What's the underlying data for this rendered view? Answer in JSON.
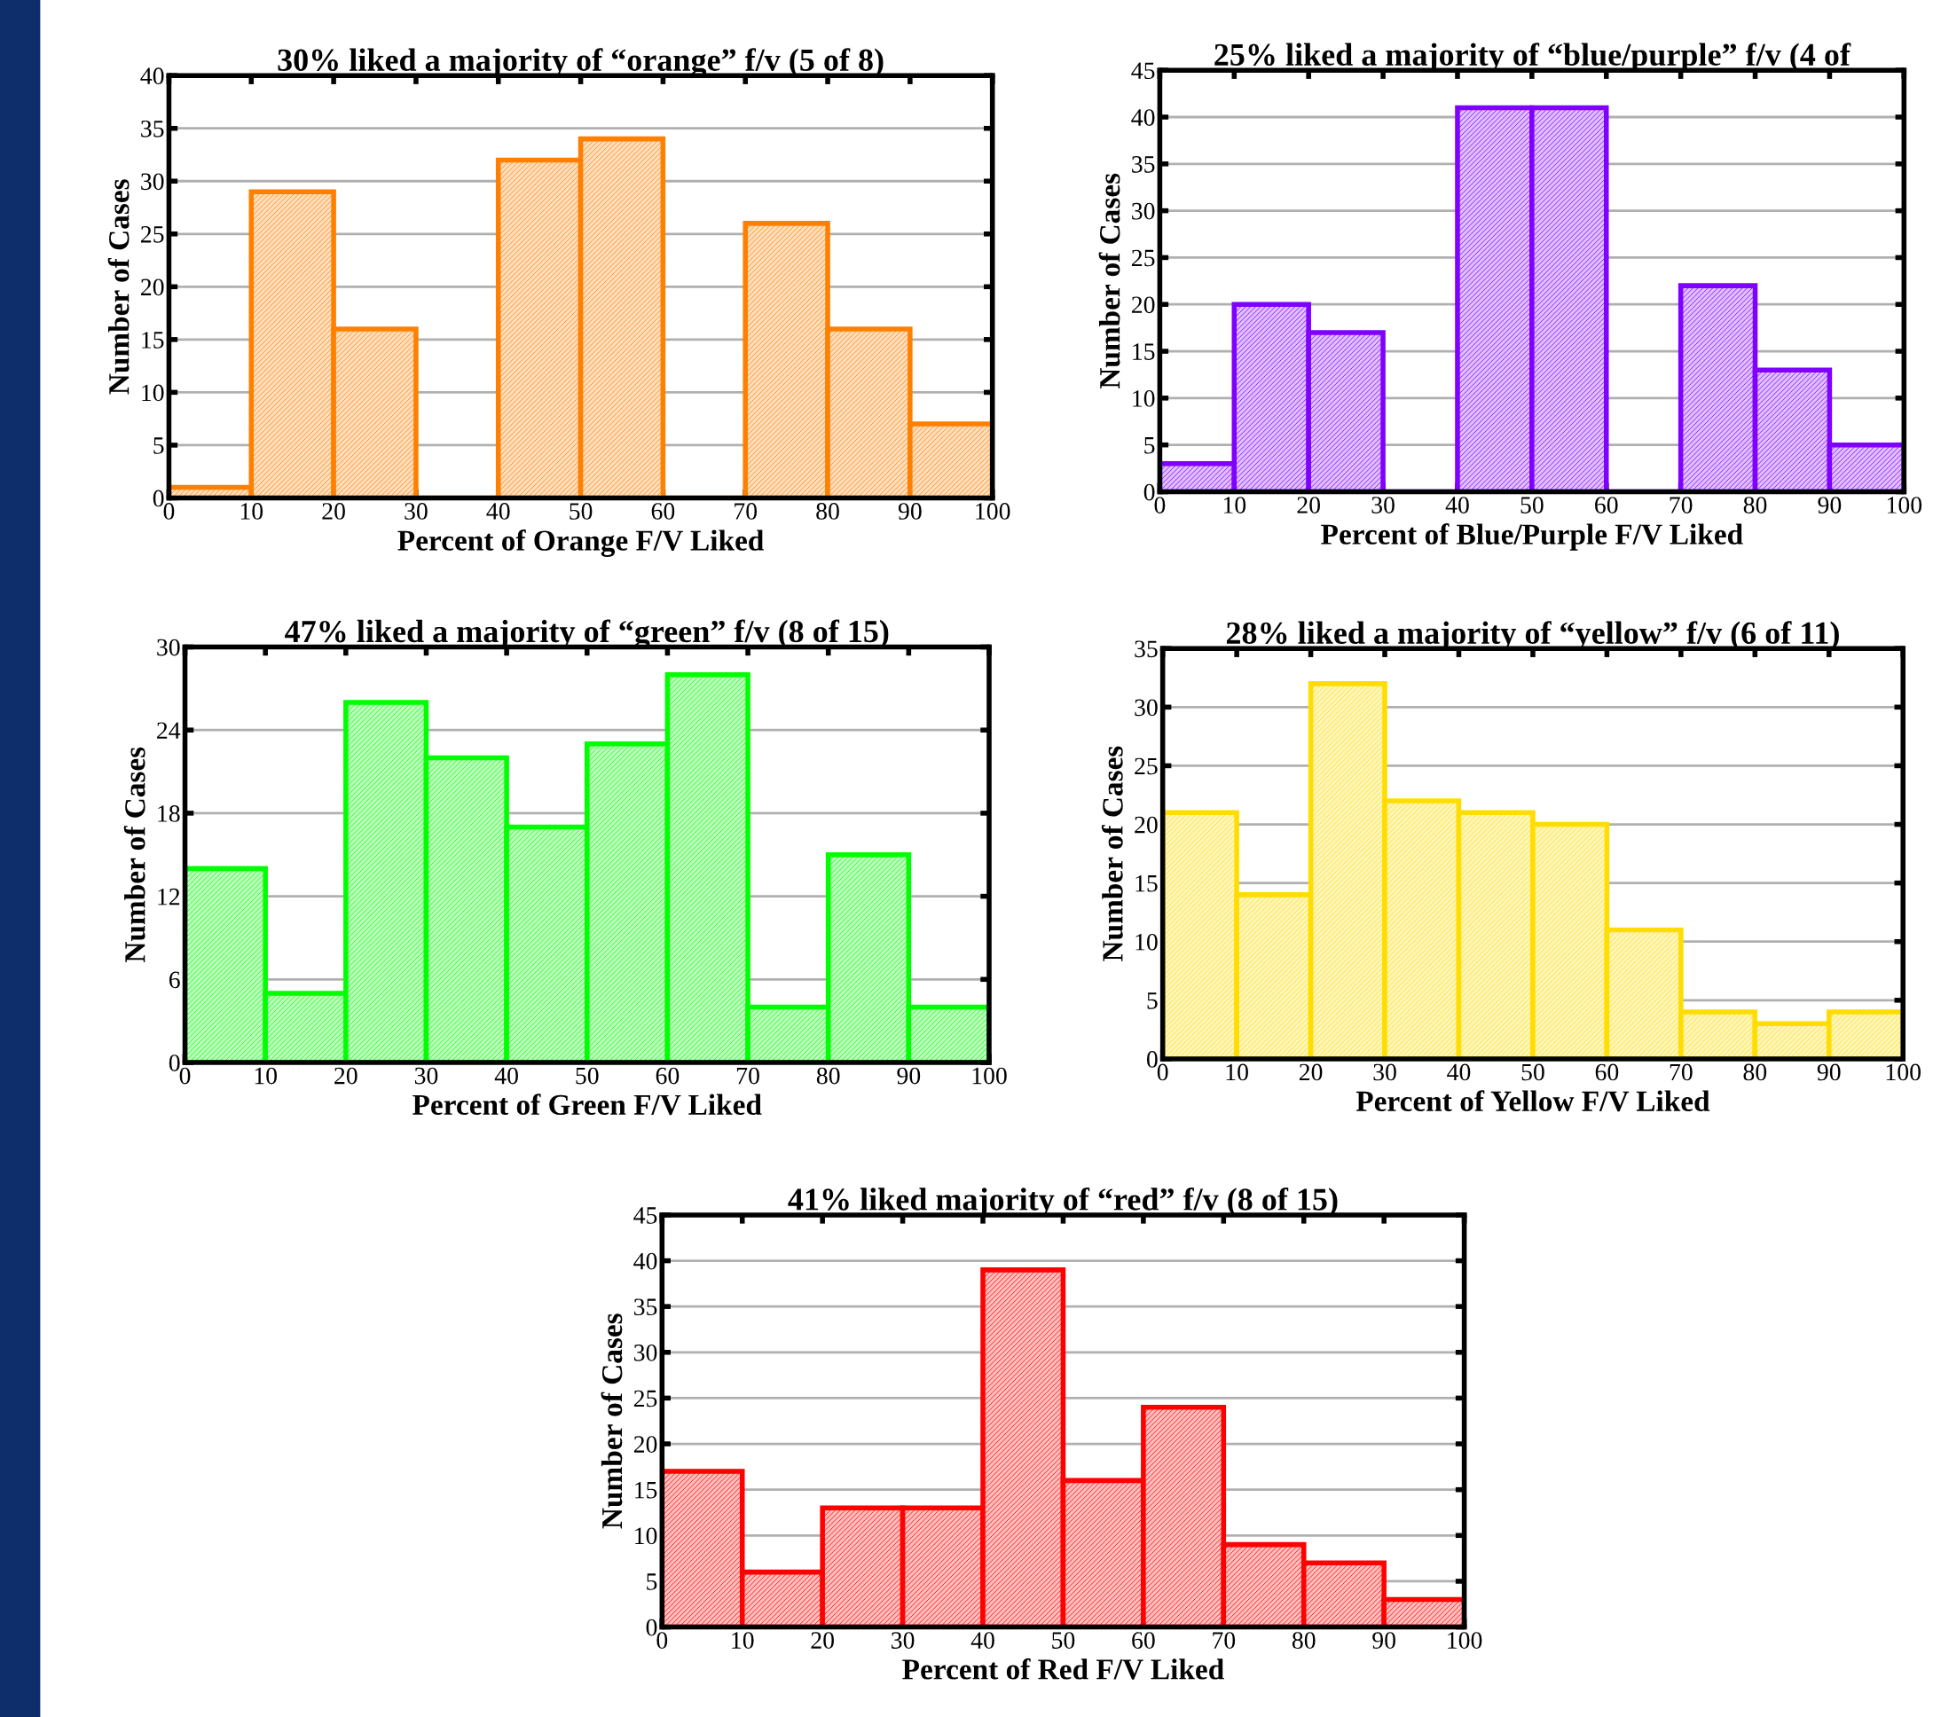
{
  "chart_data": [
    {
      "type": "histogram",
      "title": "30% liked a majority of “orange” f/v (5 of 8)",
      "xlabel": "Percent of Orange F/V Liked",
      "ylabel": "Number of Cases",
      "bins": [
        0,
        10,
        20,
        30,
        40,
        50,
        60,
        70,
        80,
        90,
        100
      ],
      "values": [
        1,
        29,
        16,
        0,
        32,
        34,
        0,
        26,
        16,
        7
      ],
      "color": "#ff8000",
      "xlim": [
        0,
        100
      ],
      "ylim": [
        0,
        40
      ],
      "xticks": [
        0,
        10,
        20,
        30,
        40,
        50,
        60,
        70,
        80,
        90,
        100
      ],
      "yticks": [
        0,
        5,
        10,
        15,
        20,
        25,
        30,
        35,
        40
      ],
      "grid": "y"
    },
    {
      "type": "histogram",
      "title": "25% liked a majority of “blue/purple” f/v (4 of",
      "xlabel": "Percent of Blue/Purple F/V Liked",
      "ylabel": "Number of Cases",
      "bins": [
        0,
        10,
        20,
        30,
        40,
        50,
        60,
        70,
        80,
        90,
        100
      ],
      "values": [
        3,
        20,
        17,
        0,
        41,
        41,
        0,
        22,
        13,
        5
      ],
      "color": "#8000ff",
      "xlim": [
        0,
        100
      ],
      "ylim": [
        0,
        45
      ],
      "xticks": [
        0,
        10,
        20,
        30,
        40,
        50,
        60,
        70,
        80,
        90,
        100
      ],
      "yticks": [
        0,
        5,
        10,
        15,
        20,
        25,
        30,
        35,
        40,
        45
      ],
      "grid": "y"
    },
    {
      "type": "histogram",
      "title": "47% liked a majority of “green” f/v (8 of 15)",
      "xlabel": "Percent of Green F/V Liked",
      "ylabel": "Number of Cases",
      "bins": [
        0,
        10,
        20,
        30,
        40,
        50,
        60,
        70,
        80,
        90,
        100
      ],
      "values": [
        14,
        5,
        26,
        22,
        17,
        23,
        28,
        4,
        15,
        4
      ],
      "color": "#00ff00",
      "xlim": [
        0,
        100
      ],
      "ylim": [
        0,
        30
      ],
      "xticks": [
        0,
        10,
        20,
        30,
        40,
        50,
        60,
        70,
        80,
        90,
        100
      ],
      "yticks": [
        0,
        6,
        12,
        18,
        24,
        30
      ],
      "grid": "y"
    },
    {
      "type": "histogram",
      "title": "28% liked a majority of “yellow” f/v (6 of 11)",
      "xlabel": "Percent of Yellow F/V Liked",
      "ylabel": "Number of Cases",
      "bins": [
        0,
        10,
        20,
        30,
        40,
        50,
        60,
        70,
        80,
        90,
        100
      ],
      "values": [
        21,
        14,
        32,
        22,
        21,
        20,
        11,
        4,
        3,
        4
      ],
      "color": "#ffdd00",
      "xlim": [
        0,
        100
      ],
      "ylim": [
        0,
        35
      ],
      "xticks": [
        0,
        10,
        20,
        30,
        40,
        50,
        60,
        70,
        80,
        90,
        100
      ],
      "yticks": [
        0,
        5,
        10,
        15,
        20,
        25,
        30,
        35
      ],
      "grid": "y"
    },
    {
      "type": "histogram",
      "title": "41% liked majority of “red” f/v (8 of 15)",
      "xlabel": "Percent of Red F/V Liked",
      "ylabel": "Number of Cases",
      "bins": [
        0,
        10,
        20,
        30,
        40,
        50,
        60,
        70,
        80,
        90,
        100
      ],
      "values": [
        17,
        6,
        13,
        13,
        39,
        16,
        24,
        9,
        7,
        3
      ],
      "color": "#ff0000",
      "xlim": [
        0,
        100
      ],
      "ylim": [
        0,
        45
      ],
      "xticks": [
        0,
        10,
        20,
        30,
        40,
        50,
        60,
        70,
        80,
        90,
        100
      ],
      "yticks": [
        0,
        5,
        10,
        15,
        20,
        25,
        30,
        35,
        40,
        45
      ],
      "grid": "y"
    }
  ]
}
